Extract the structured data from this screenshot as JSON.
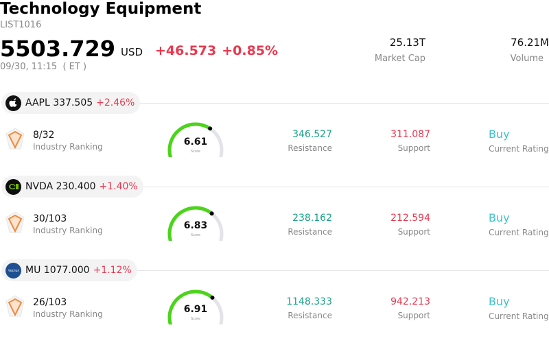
{
  "header": {
    "title": "Technology Equipment",
    "code": "LIST1016",
    "price": "5503.729",
    "currency": "USD",
    "change_abs": "+46.573",
    "change_pct": "+0.85%",
    "time": "09/30, 11:15  ( ET )",
    "market_cap_value": "25.13T",
    "market_cap_label": "Market Cap",
    "volume_value": "76.21M",
    "volume_label": "Volume"
  },
  "colors": {
    "down_red": "#e8384f",
    "resistance_green": "#19a18a",
    "rating_teal": "#3ec1cb",
    "gauge_green": "#4cd41b",
    "gauge_track": "#e3e3e8"
  },
  "stocks": [
    {
      "symbol": "AAPL",
      "price": "337.505",
      "change_pct": "+2.46%",
      "logo": "apple-logo",
      "rank": "8/32",
      "rank_label": "Industry Ranking",
      "score": "6.61",
      "score_value": 6.61,
      "score_label": "Score",
      "resistance": "346.527",
      "resistance_label": "Resistance",
      "support": "311.087",
      "support_label": "Support",
      "rating": "Buy",
      "rating_label": "Current Rating"
    },
    {
      "symbol": "NVDA",
      "price": "230.400",
      "change_pct": "+1.40%",
      "logo": "nvidia-logo",
      "rank": "30/103",
      "rank_label": "Industry Ranking",
      "score": "6.83",
      "score_value": 6.83,
      "score_label": "Score",
      "resistance": "238.162",
      "resistance_label": "Resistance",
      "support": "212.594",
      "support_label": "Support",
      "rating": "Buy",
      "rating_label": "Current Rating"
    },
    {
      "symbol": "MU",
      "price": "1077.000",
      "change_pct": "+1.12%",
      "logo": "micron-logo",
      "rank": "26/103",
      "rank_label": "Industry Ranking",
      "score": "6.91",
      "score_value": 6.91,
      "score_label": "Score",
      "resistance": "1148.333",
      "resistance_label": "Resistance",
      "support": "942.213",
      "support_label": "Support",
      "rating": "Buy",
      "rating_label": "Current Rating"
    }
  ]
}
